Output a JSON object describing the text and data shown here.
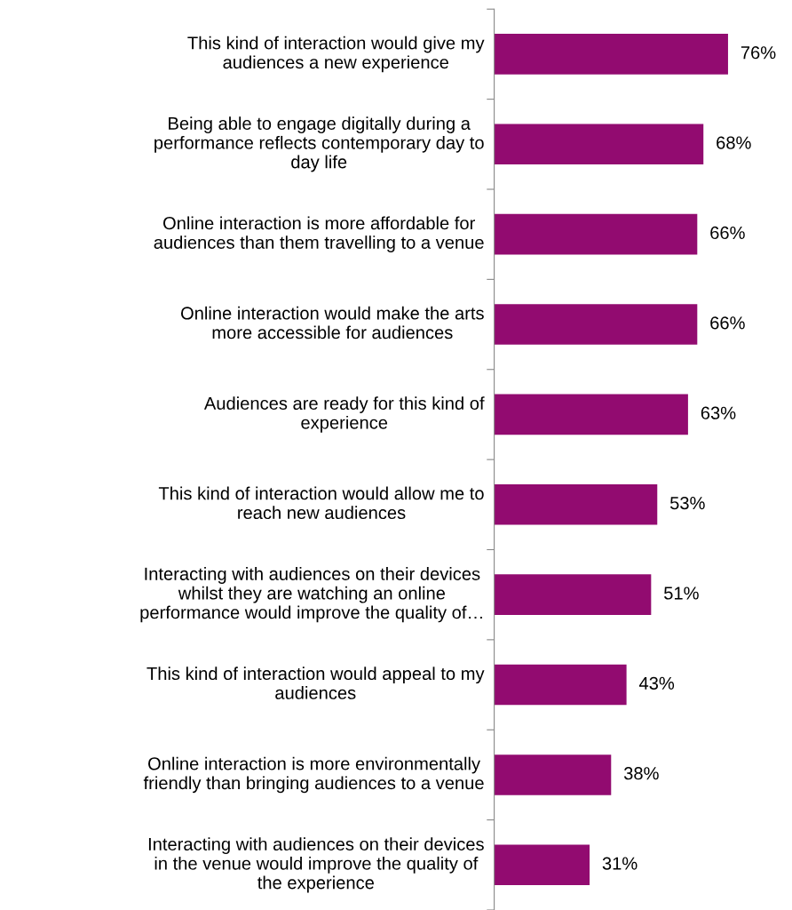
{
  "chart_data": {
    "type": "bar",
    "orientation": "horizontal",
    "categories": [
      "This kind of interaction would give my\naudiences a new experience",
      "Being able to engage digitally during a\nperformance reflects contemporary day to\nday life",
      "Online interaction is more affordable for\naudiences than them travelling to a venue",
      "Online interaction would make the arts\nmore accessible for audiences",
      "Audiences are ready for this kind of\nexperience",
      "This kind of interaction would allow me to\nreach new audiences",
      "Interacting with audiences on their devices\nwhilst they are watching an online\nperformance would improve the quality of…",
      "This kind of interaction would appeal to my\naudiences",
      "Online interaction is more environmentally\nfriendly than bringing audiences to a venue",
      "Interacting with audiences on their devices\nin the venue would improve the quality of\nthe experience"
    ],
    "values": [
      76,
      68,
      66,
      66,
      63,
      53,
      51,
      43,
      38,
      31
    ],
    "value_labels": [
      "76%",
      "68%",
      "66%",
      "66%",
      "63%",
      "53%",
      "51%",
      "43%",
      "38%",
      "31%"
    ],
    "color": "#920b70"
  }
}
